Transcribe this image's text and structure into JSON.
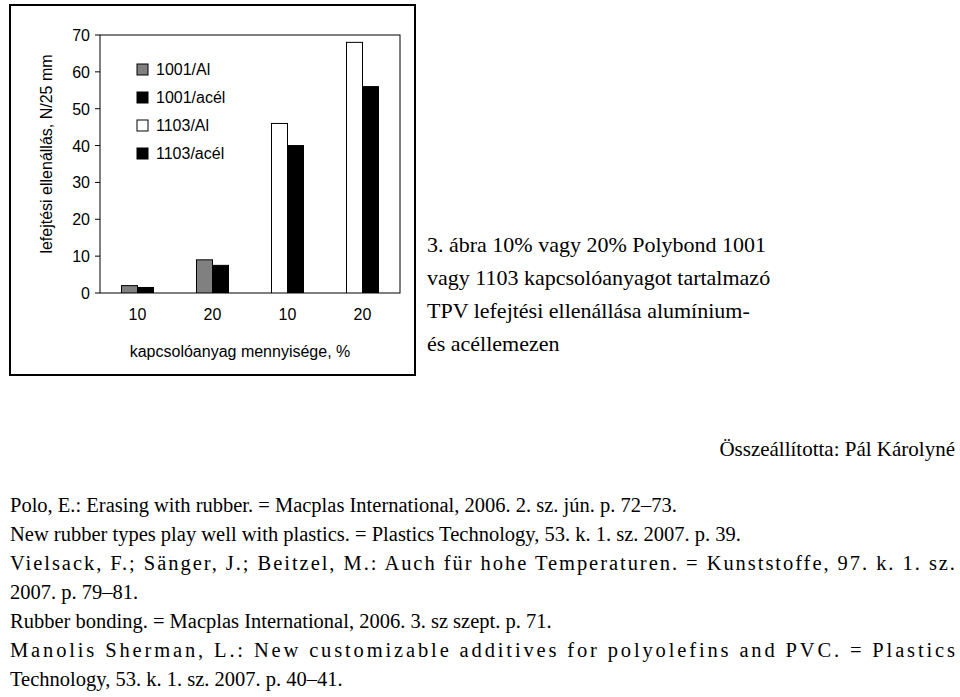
{
  "chart_data": {
    "type": "bar",
    "xlabel": "kapcsolóanyag mennyisége, %",
    "ylabel": "lefejtési ellenállás, N/25 mm",
    "categories": [
      "10",
      "20",
      "10",
      "20"
    ],
    "series": [
      {
        "name": "1001/Al",
        "color": "#808080",
        "values": [
          2,
          9,
          null,
          null
        ]
      },
      {
        "name": "1001/acél",
        "color": "#000000",
        "values": [
          1.5,
          7.5,
          null,
          null
        ]
      },
      {
        "name": "1103/Al",
        "color": "#ffffff",
        "values": [
          null,
          null,
          46,
          68
        ]
      },
      {
        "name": "1103/acél",
        "color": "#000000",
        "values": [
          null,
          null,
          40,
          56
        ]
      }
    ],
    "ylim": [
      0,
      70
    ],
    "yticks": [
      0,
      10,
      20,
      30,
      40,
      50,
      60,
      70
    ],
    "legend": "upper-left"
  },
  "caption": [
    "3. ábra 10% vagy 20% Polybond 1001",
    "vagy 1103 kapcsolóanyagot tartalmazó",
    "TPV lefejtési ellenállása alumínium-",
    "és acéllemezen"
  ],
  "compiled_by": "Összeállította: Pál Károlyné",
  "references": [
    [
      "Polo, E.: Erasing with rubber. = Macplas International, 2006. 2. sz. jún. p. 72–73."
    ],
    [
      "New rubber types play well with plastics. = Plastics Technology, 53. k. 1. sz. 2007. p. 39."
    ],
    [
      "Vielsack, F.; Sänger, J.; Beitzel, M.: Auch für hohe Temperaturen. = Kunststoffe, 97. k. 1. sz.",
      "2007. p. 79–81."
    ],
    [
      "Rubber bonding. = Macplas International, 2006. 3. sz szept. p. 71."
    ],
    [
      "Manolis Sherman, L.: New customizable additives for polyolefins and PVC. = Plastics",
      "Technology, 53. k. 1. sz. 2007. p. 40–41."
    ]
  ]
}
